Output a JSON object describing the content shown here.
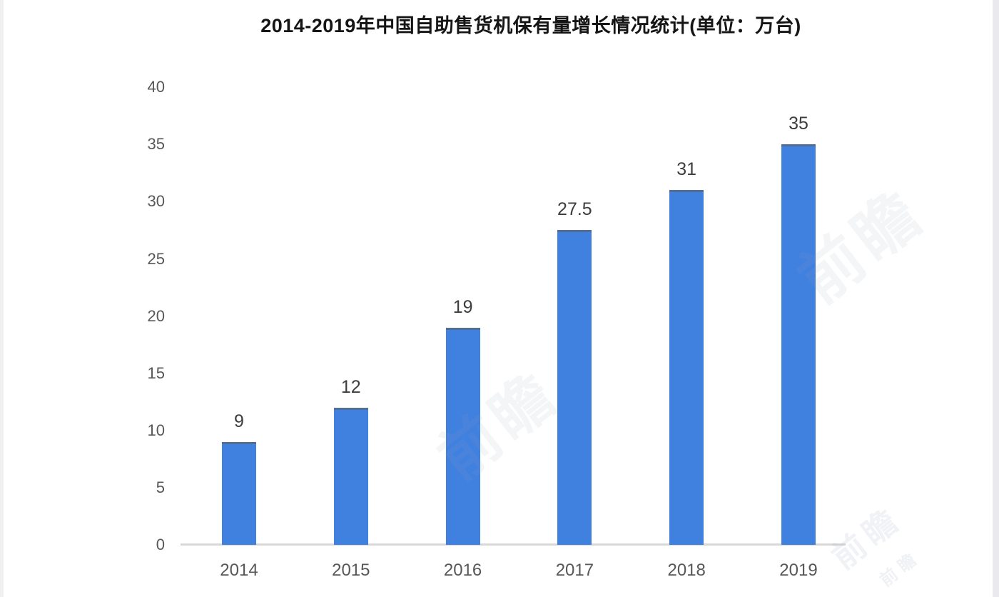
{
  "chart_data": {
    "type": "bar",
    "title": "2014-2019年中国自助售货机保有量增长情况统计(单位：万台)",
    "categories": [
      "2014",
      "2015",
      "2016",
      "2017",
      "2018",
      "2019"
    ],
    "values": [
      9,
      12,
      19,
      27.5,
      31,
      35
    ],
    "value_labels": [
      "9",
      "12",
      "19",
      "27.5",
      "31",
      "35"
    ],
    "xlabel": "",
    "ylabel": "",
    "ylim": [
      0,
      40
    ],
    "yticks": [
      0,
      5,
      10,
      15,
      20,
      25,
      30,
      35,
      40
    ],
    "grid": false,
    "legend": false,
    "bar_color": "#4080df",
    "bar_top_edge_color": "rgba(95,95,85,0.55)",
    "axis_line_color": "#d9d9d9",
    "tick_label_color": "#575757",
    "value_label_color": "#3d3d3d",
    "title_color": "#151515"
  },
  "watermark": {
    "text": "前瞻"
  }
}
